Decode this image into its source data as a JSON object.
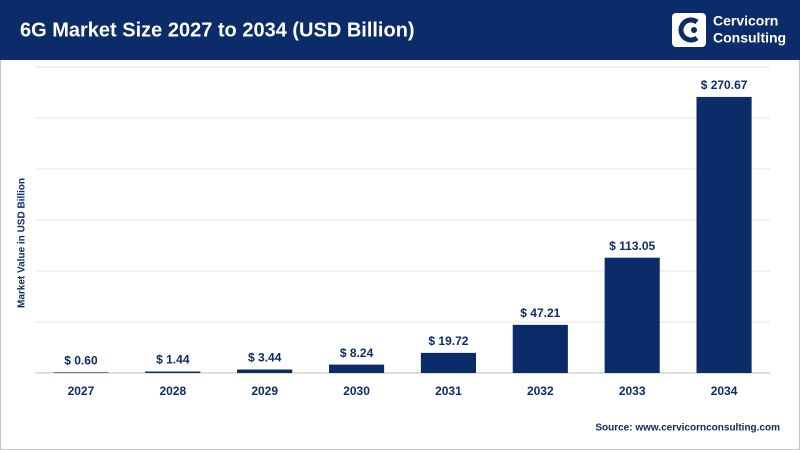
{
  "chart_data": {
    "type": "bar",
    "title": "6G Market Size 2027 to 2034 (USD Billion)",
    "brand": [
      "Cervicorn",
      "Consulting"
    ],
    "y_label": "Market Value in USD Billion",
    "source": "Source: www.cervicornconsulting.com",
    "categories": [
      "2027",
      "2028",
      "2029",
      "2030",
      "2031",
      "2032",
      "2033",
      "2034"
    ],
    "values": [
      0.6,
      1.44,
      3.44,
      8.24,
      19.72,
      47.21,
      113.05,
      270.67
    ],
    "value_labels": [
      "$ 0.60",
      "$ 1.44",
      "$ 3.44",
      "$ 8.24",
      "$ 19.72",
      "$ 47.21",
      "$ 113.05",
      "$ 270.67"
    ],
    "color": "#0b2c68",
    "ylim": [
      0,
      300
    ],
    "yticks": [
      0,
      50,
      100,
      150,
      200,
      250,
      300
    ],
    "grid": true
  }
}
